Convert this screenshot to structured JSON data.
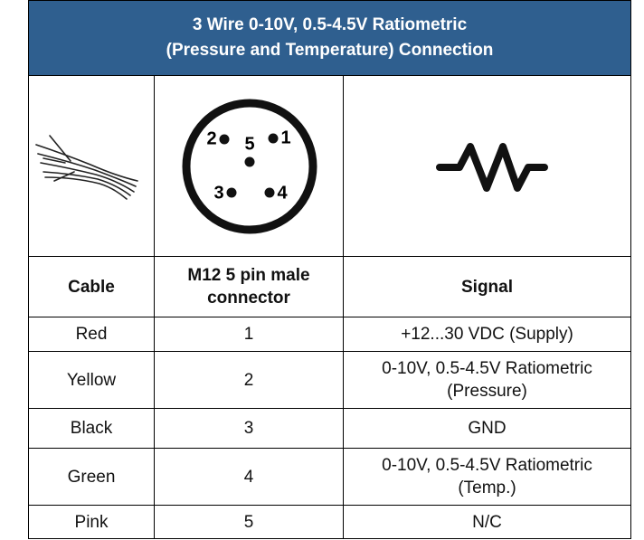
{
  "header": {
    "title_lines": [
      "3 Wire 0-10V, 0.5-4.5V Ratiometric",
      "(Pressure and Temperature) Connection"
    ]
  },
  "connector_pins": [
    "2",
    "5",
    "1",
    "3",
    "4"
  ],
  "table": {
    "columns": [
      "Cable",
      "M12 5 pin male connector",
      "Signal"
    ],
    "rows": [
      [
        "Red",
        "1",
        "+12...30 VDC (Supply)"
      ],
      [
        "Yellow",
        "2",
        "0-10V, 0.5-4.5V Ratiometric (Pressure)"
      ],
      [
        "Black",
        "3",
        "GND"
      ],
      [
        "Green",
        "4",
        "0-10V, 0.5-4.5V Ratiometric (Temp.)"
      ],
      [
        "Pink",
        "5",
        "N/C"
      ]
    ]
  }
}
